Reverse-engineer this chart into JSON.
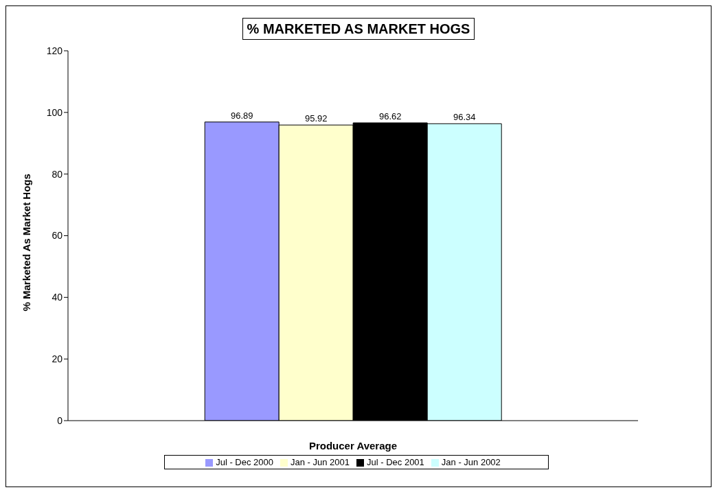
{
  "chart_data": {
    "type": "bar",
    "title": "% MARKETED AS MARKET HOGS",
    "xlabel": "Producer Average",
    "ylabel": "% Marketed As Market Hogs",
    "categories": [
      null
    ],
    "series": [
      {
        "name": "Jul - Dec 2000",
        "color": "#9999ff",
        "values": [
          96.89
        ]
      },
      {
        "name": "Jan - Jun 2001",
        "color": "#ffffcc",
        "values": [
          95.92
        ]
      },
      {
        "name": "Jul - Dec 2001",
        "color": "#000000",
        "values": [
          96.62
        ]
      },
      {
        "name": "Jan - Jun 2002",
        "color": "#ccffff",
        "values": [
          96.34
        ]
      }
    ],
    "ylim": [
      0,
      120
    ],
    "yticks": [
      0,
      20,
      40,
      60,
      80,
      100,
      120
    ],
    "data_labels": true,
    "legend": "bottom",
    "grid": false
  }
}
